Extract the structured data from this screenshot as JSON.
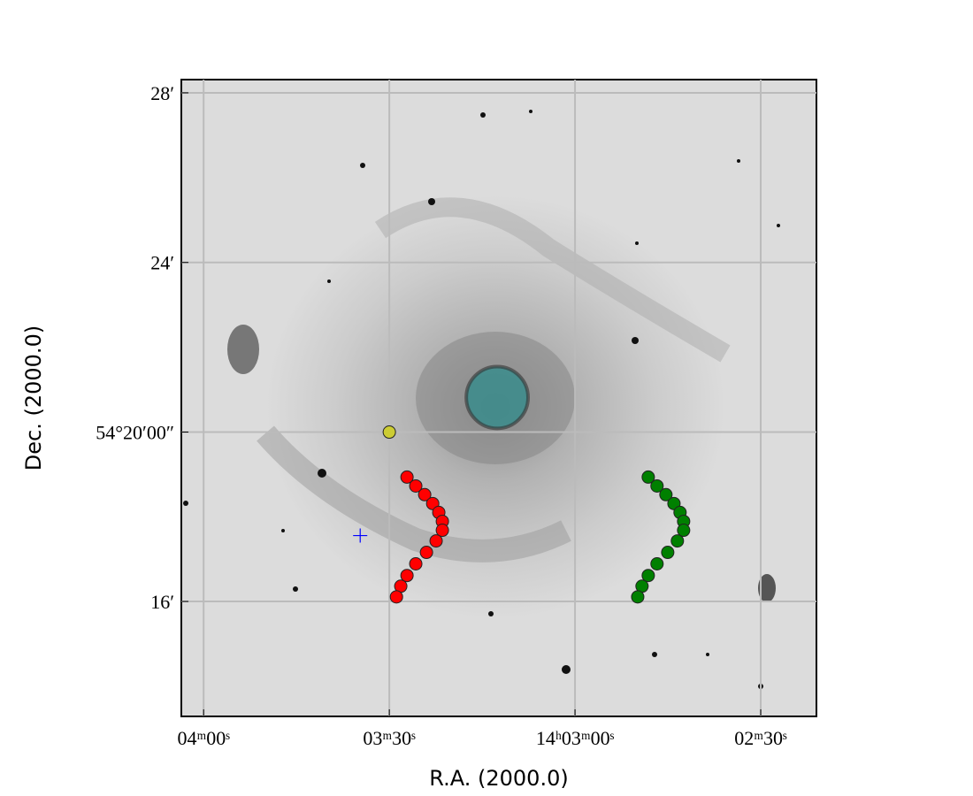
{
  "chart_data": {
    "type": "scatter",
    "xlabel": "R.A. (2000.0)",
    "ylabel": "Dec. (2000.0)",
    "xlim": [
      211.015,
      210.5875
    ],
    "ylim": [
      54.2215,
      54.4719
    ],
    "xticks": [
      {
        "value": 211.0,
        "label": "04ᵐ00ˢ"
      },
      {
        "value": 210.875,
        "label": "03ᵐ30ˢ"
      },
      {
        "value": 210.75,
        "label": "14ʰ03ᵐ00ˢ"
      },
      {
        "value": 210.625,
        "label": "02ᵐ30ˢ"
      }
    ],
    "yticks": [
      {
        "value": 54.2667,
        "label": "16′"
      },
      {
        "value": 54.3333,
        "label": "54°20′00″"
      },
      {
        "value": 54.4,
        "label": "24′"
      },
      {
        "value": 54.4667,
        "label": "28′"
      }
    ],
    "grid": true,
    "series": [
      {
        "color": "#ff0000",
        "marker": "o",
        "x": [
          210.8631,
          210.8572,
          210.8512,
          210.8458,
          210.8417,
          210.8393,
          210.8393,
          210.8435,
          210.85,
          210.8572,
          210.8631,
          210.8673,
          210.8702
        ],
        "values": [
          54.3156,
          54.3121,
          54.3087,
          54.3052,
          54.3017,
          54.2982,
          54.2947,
          54.2905,
          54.286,
          54.2815,
          54.2769,
          54.2727,
          54.2685
        ]
      },
      {
        "color": "#008000",
        "marker": "o",
        "x": [
          210.7007,
          210.6948,
          210.6888,
          210.6834,
          210.6793,
          210.6769,
          210.6769,
          210.6811,
          210.6876,
          210.6948,
          210.7007,
          210.7049,
          210.7078
        ],
        "values": [
          54.3156,
          54.3121,
          54.3087,
          54.3052,
          54.3017,
          54.2982,
          54.2947,
          54.2905,
          54.286,
          54.2815,
          54.2769,
          54.2727,
          54.2685
        ]
      },
      {
        "color": "#cccc33",
        "marker": "o",
        "x": [
          210.875
        ],
        "values": [
          54.3333
        ]
      },
      {
        "color": "#0000ff",
        "marker": "+",
        "x": [
          210.8946
        ],
        "values": [
          54.2926
        ]
      },
      {
        "color": "#2e8b8b",
        "marker": "circle",
        "x": [
          210.8024
        ],
        "values": [
          54.3469
        ],
        "sizes": [
          0.0208
        ]
      }
    ]
  }
}
